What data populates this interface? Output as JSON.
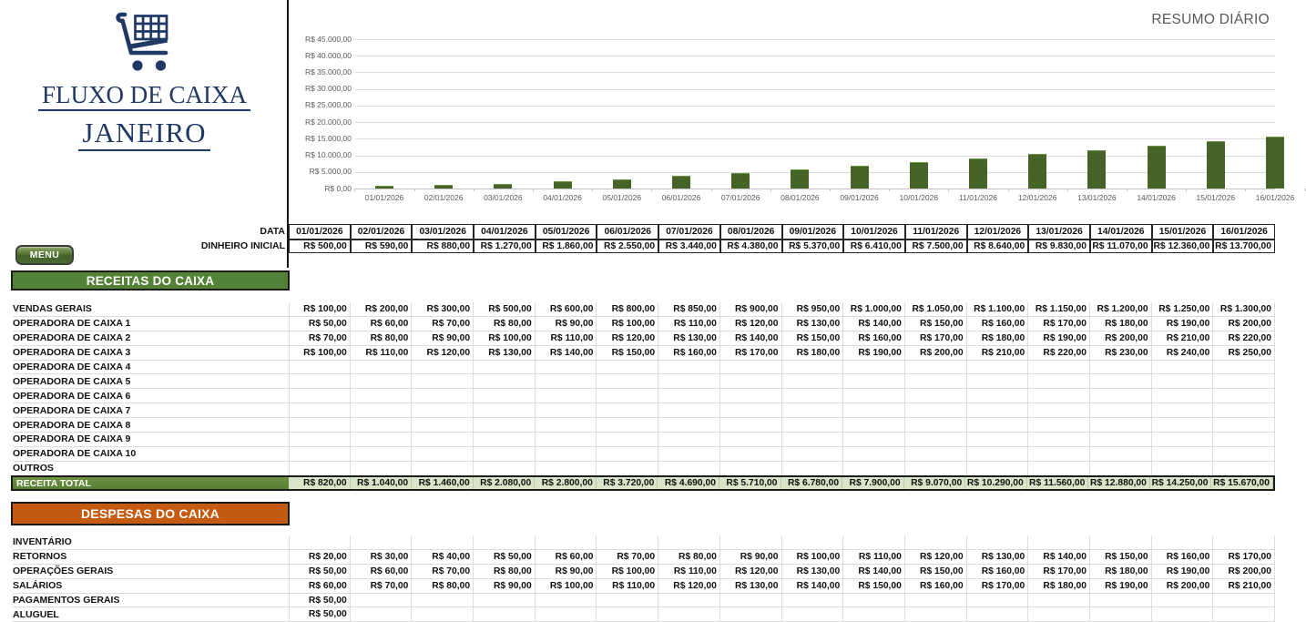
{
  "logo": {
    "title": "FLUXO DE CAIXA",
    "month": "JANEIRO"
  },
  "menu": {
    "label": "MENU"
  },
  "chart_data": {
    "type": "bar",
    "title": "RESUMO DIÁRIO",
    "categories": [
      "01/01/2026",
      "02/01/2026",
      "03/01/2026",
      "04/01/2026",
      "05/01/2026",
      "06/01/2026",
      "07/01/2026",
      "08/01/2026",
      "09/01/2026",
      "10/01/2026",
      "11/01/2026",
      "12/01/2026",
      "13/01/2026",
      "14/01/2026",
      "15/01/2026",
      "16/01/2026"
    ],
    "values": [
      820,
      1040,
      1460,
      2080,
      2800,
      3720,
      4690,
      5710,
      6780,
      7900,
      9070,
      10290,
      11560,
      12880,
      14250,
      15670
    ],
    "ylim": [
      0,
      45000
    ],
    "ytick_step": 5000,
    "ytick_labels": [
      "R$ 45.000,00",
      "R$ 40.000,00",
      "R$ 35.000,00",
      "R$ 30.000,00",
      "R$ 25.000,00",
      "R$ 20.000,00",
      "R$ 15.000,00",
      "R$ 10.000,00",
      "R$ 5.000,00",
      "R$ 0,00"
    ],
    "bar_color": "#466428",
    "grid": true,
    "legend": "none"
  },
  "table": {
    "dates_label": "DATA",
    "dates": [
      "01/01/2026",
      "02/01/2026",
      "03/01/2026",
      "04/01/2026",
      "05/01/2026",
      "06/01/2026",
      "07/01/2026",
      "08/01/2026",
      "09/01/2026",
      "10/01/2026",
      "11/01/2026",
      "12/01/2026",
      "13/01/2026",
      "14/01/2026",
      "15/01/2026",
      "16/01/2026"
    ],
    "initial_cash_label": "DINHEIRO INICIAL",
    "initial_cash": [
      "R$ 500,00",
      "R$ 590,00",
      "R$ 880,00",
      "R$ 1.270,00",
      "R$ 1.860,00",
      "R$ 2.550,00",
      "R$ 3.440,00",
      "R$ 4.380,00",
      "R$ 5.370,00",
      "R$ 6.410,00",
      "R$ 7.500,00",
      "R$ 8.640,00",
      "R$ 9.830,00",
      "R$ 11.070,00",
      "R$ 12.360,00",
      "R$ 13.700,00"
    ],
    "receitas": {
      "banner": "RECEITAS DO CAIXA",
      "rows": [
        {
          "label": "VENDAS GERAIS",
          "values": [
            "R$ 100,00",
            "R$ 200,00",
            "R$ 300,00",
            "R$ 500,00",
            "R$ 600,00",
            "R$ 800,00",
            "R$ 850,00",
            "R$ 900,00",
            "R$ 950,00",
            "R$ 1.000,00",
            "R$ 1.050,00",
            "R$ 1.100,00",
            "R$ 1.150,00",
            "R$ 1.200,00",
            "R$ 1.250,00",
            "R$ 1.300,00"
          ]
        },
        {
          "label": "OPERADORA DE CAIXA 1",
          "values": [
            "R$ 50,00",
            "R$ 60,00",
            "R$ 70,00",
            "R$ 80,00",
            "R$ 90,00",
            "R$ 100,00",
            "R$ 110,00",
            "R$ 120,00",
            "R$ 130,00",
            "R$ 140,00",
            "R$ 150,00",
            "R$ 160,00",
            "R$ 170,00",
            "R$ 180,00",
            "R$ 190,00",
            "R$ 200,00"
          ]
        },
        {
          "label": "OPERADORA DE CAIXA 2",
          "values": [
            "R$ 70,00",
            "R$ 80,00",
            "R$ 90,00",
            "R$ 100,00",
            "R$ 110,00",
            "R$ 120,00",
            "R$ 130,00",
            "R$ 140,00",
            "R$ 150,00",
            "R$ 160,00",
            "R$ 170,00",
            "R$ 180,00",
            "R$ 190,00",
            "R$ 200,00",
            "R$ 210,00",
            "R$ 220,00"
          ]
        },
        {
          "label": "OPERADORA DE CAIXA 3",
          "values": [
            "R$ 100,00",
            "R$ 110,00",
            "R$ 120,00",
            "R$ 130,00",
            "R$ 140,00",
            "R$ 150,00",
            "R$ 160,00",
            "R$ 170,00",
            "R$ 180,00",
            "R$ 190,00",
            "R$ 200,00",
            "R$ 210,00",
            "R$ 220,00",
            "R$ 230,00",
            "R$ 240,00",
            "R$ 250,00"
          ]
        },
        {
          "label": "OPERADORA DE CAIXA 4",
          "values": []
        },
        {
          "label": "OPERADORA DE CAIXA 5",
          "values": []
        },
        {
          "label": "OPERADORA DE CAIXA 6",
          "values": []
        },
        {
          "label": "OPERADORA DE CAIXA 7",
          "values": []
        },
        {
          "label": "OPERADORA DE CAIXA 8",
          "values": []
        },
        {
          "label": "OPERADORA DE CAIXA 9",
          "values": []
        },
        {
          "label": "OPERADORA DE CAIXA 10",
          "values": []
        },
        {
          "label": "OUTROS",
          "values": []
        }
      ],
      "total_label": "RECEITA TOTAL",
      "total_values": [
        "R$ 820,00",
        "R$ 1.040,00",
        "R$ 1.460,00",
        "R$ 2.080,00",
        "R$ 2.800,00",
        "R$ 3.720,00",
        "R$ 4.690,00",
        "R$ 5.710,00",
        "R$ 6.780,00",
        "R$ 7.900,00",
        "R$ 9.070,00",
        "R$ 10.290,00",
        "R$ 11.560,00",
        "R$ 12.880,00",
        "R$ 14.250,00",
        "R$ 15.670,00"
      ]
    },
    "despesas": {
      "banner": "DESPESAS DO CAIXA",
      "rows": [
        {
          "label": "INVENTÁRIO",
          "values": []
        },
        {
          "label": "RETORNOS",
          "values": [
            "R$ 20,00",
            "R$ 30,00",
            "R$ 40,00",
            "R$ 50,00",
            "R$ 60,00",
            "R$ 70,00",
            "R$ 80,00",
            "R$ 90,00",
            "R$ 100,00",
            "R$ 110,00",
            "R$ 120,00",
            "R$ 130,00",
            "R$ 140,00",
            "R$ 150,00",
            "R$ 160,00",
            "R$ 170,00"
          ]
        },
        {
          "label": "OPERAÇÕES GERAIS",
          "values": [
            "R$ 50,00",
            "R$ 60,00",
            "R$ 70,00",
            "R$ 80,00",
            "R$ 90,00",
            "R$ 100,00",
            "R$ 110,00",
            "R$ 120,00",
            "R$ 130,00",
            "R$ 140,00",
            "R$ 150,00",
            "R$ 160,00",
            "R$ 170,00",
            "R$ 180,00",
            "R$ 190,00",
            "R$ 200,00"
          ]
        },
        {
          "label": "SALÁRIOS",
          "values": [
            "R$ 60,00",
            "R$ 70,00",
            "R$ 80,00",
            "R$ 90,00",
            "R$ 100,00",
            "R$ 110,00",
            "R$ 120,00",
            "R$ 130,00",
            "R$ 140,00",
            "R$ 150,00",
            "R$ 160,00",
            "R$ 170,00",
            "R$ 180,00",
            "R$ 190,00",
            "R$ 200,00",
            "R$ 210,00"
          ]
        },
        {
          "label": "PAGAMENTOS GERAIS",
          "values": [
            "R$ 50,00"
          ]
        },
        {
          "label": "ALUGUEL",
          "values": [
            "R$ 50,00"
          ]
        }
      ]
    }
  },
  "colors": {
    "navy": "#1f3864",
    "receitas_banner_green": "#538135",
    "despesas_banner_orange": "#c55a11",
    "bar_green": "#466428",
    "total_label_green": "#6d9342",
    "total_value_bg": "#d9e4c8",
    "grid_light": "#dcdcdc",
    "axis_text_gray": "#595959"
  }
}
